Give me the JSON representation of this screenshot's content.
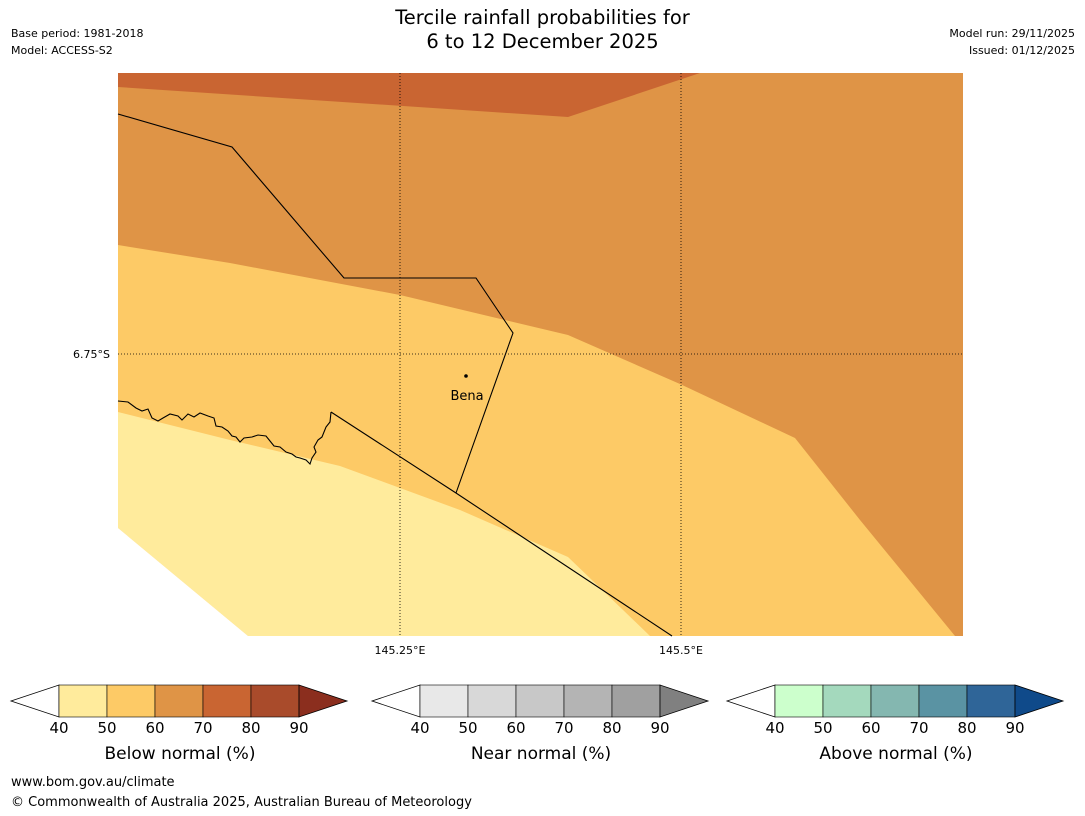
{
  "header": {
    "title_line1": "Tercile rainfall probabilities for",
    "title_line2": "6 to 12 December 2025",
    "base_period": "Base period: 1981-2018",
    "model": "Model: ACCESS-S2",
    "model_run": "Model run: 29/11/2025",
    "issued": "Issued: 01/12/2025"
  },
  "map": {
    "place_label": "Bena",
    "lat_label": "6.75°S",
    "lon_labels": [
      "145.25°E",
      "145.5°E"
    ]
  },
  "colorbars": [
    {
      "title": "Below normal (%)",
      "ticks": [
        "40",
        "50",
        "60",
        "70",
        "80",
        "90"
      ],
      "colors": [
        "#ffffff",
        "#ffeb9c",
        "#fdca66",
        "#df9446",
        "#c96532",
        "#a94b2b",
        "#8b2e1e"
      ]
    },
    {
      "title": "Near normal (%)",
      "ticks": [
        "40",
        "50",
        "60",
        "70",
        "80",
        "90"
      ],
      "colors": [
        "#ffffff",
        "#e8e8e8",
        "#d8d8d8",
        "#c8c8c8",
        "#b4b4b4",
        "#a0a0a0",
        "#808080"
      ]
    },
    {
      "title": "Above normal (%)",
      "ticks": [
        "40",
        "50",
        "60",
        "70",
        "80",
        "90"
      ],
      "colors": [
        "#ffffff",
        "#ccffcc",
        "#a4d9bd",
        "#84b7b0",
        "#5a93a3",
        "#2f6598",
        "#0f4a8a"
      ]
    }
  ],
  "footer": {
    "website": "www.bom.gov.au/climate",
    "copyright": "© Commonwealth of Australia 2025, Australian Bureau of Meteorology"
  },
  "colors": {
    "band_lt_50": "#ffeb9c",
    "band_50_60": "#fdca66",
    "band_60_70": "#df9446",
    "band_70_80": "#c96532"
  }
}
